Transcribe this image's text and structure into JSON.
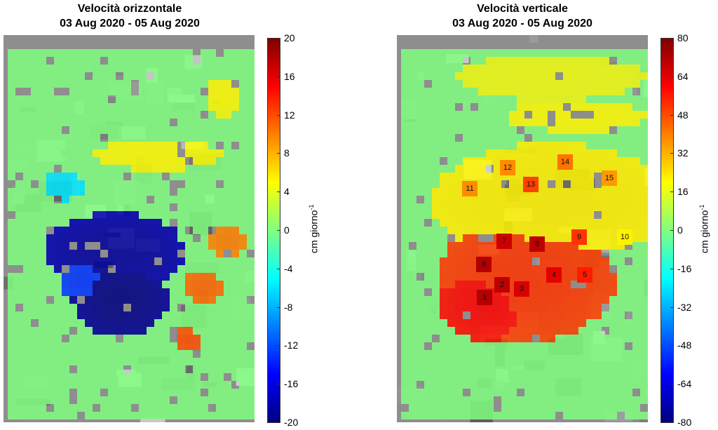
{
  "chart_data": [
    {
      "type": "heatmap",
      "title_line1": "Velocità orizzontale",
      "title_line2": "03 Aug 2020 - 05 Aug 2020",
      "colorbar_label": "cm giorno",
      "colorbar_exponent": "-1",
      "zlim": [
        -20,
        20
      ],
      "ticks": [
        "20",
        "16",
        "12",
        "8",
        "4",
        "0",
        "-4",
        "-8",
        "-12",
        "-16",
        "-20"
      ],
      "tick_values": [
        20,
        16,
        12,
        8,
        4,
        0,
        -4,
        -8,
        -12,
        -16,
        -20
      ],
      "colormap": "jet",
      "background_value": 0,
      "regions": [
        {
          "cx": 0.43,
          "cy": 0.55,
          "rx": 0.28,
          "ry": 0.1,
          "value": -19
        },
        {
          "cx": 0.45,
          "cy": 0.67,
          "rx": 0.19,
          "ry": 0.1,
          "value": -20
        },
        {
          "cx": 0.3,
          "cy": 0.62,
          "rx": 0.09,
          "ry": 0.06,
          "value": -13
        },
        {
          "cx": 0.22,
          "cy": 0.38,
          "rx": 0.08,
          "ry": 0.04,
          "value": -6
        },
        {
          "cx": 0.88,
          "cy": 0.52,
          "rx": 0.07,
          "ry": 0.04,
          "value": 10
        },
        {
          "cx": 0.78,
          "cy": 0.64,
          "rx": 0.08,
          "ry": 0.04,
          "value": 11
        },
        {
          "cx": 0.72,
          "cy": 0.78,
          "rx": 0.06,
          "ry": 0.03,
          "value": 12
        },
        {
          "cx": 0.6,
          "cy": 0.3,
          "rx": 0.25,
          "ry": 0.04,
          "value": 5
        },
        {
          "cx": 0.86,
          "cy": 0.15,
          "rx": 0.07,
          "ry": 0.05,
          "value": 5
        }
      ]
    },
    {
      "type": "heatmap",
      "title_line1": "Velocità verticale",
      "title_line2": "03 Aug 2020 - 05 Aug 2020",
      "colorbar_label": "cm giorno",
      "colorbar_exponent": "-1",
      "zlim": [
        -80,
        80
      ],
      "ticks": [
        "80",
        "64",
        "48",
        "32",
        "16",
        "0",
        "-16",
        "-32",
        "-48",
        "-64",
        "-80"
      ],
      "tick_values": [
        80,
        64,
        48,
        32,
        16,
        0,
        -16,
        -32,
        -48,
        -64,
        -80
      ],
      "colormap": "jet",
      "background_value": 0,
      "regions": [
        {
          "cx": 0.6,
          "cy": 0.42,
          "rx": 0.48,
          "ry": 0.15,
          "value": 22
        },
        {
          "cx": 0.6,
          "cy": 0.1,
          "rx": 0.38,
          "ry": 0.06,
          "value": 18
        },
        {
          "cx": 0.7,
          "cy": 0.2,
          "rx": 0.28,
          "ry": 0.04,
          "value": 20
        },
        {
          "cx": 0.5,
          "cy": 0.62,
          "rx": 0.36,
          "ry": 0.16,
          "value": 52
        },
        {
          "cx": 0.35,
          "cy": 0.68,
          "rx": 0.2,
          "ry": 0.1,
          "value": 60
        }
      ],
      "markers": [
        {
          "label": "1",
          "value": 72
        },
        {
          "label": "2",
          "value": 70
        },
        {
          "label": "3",
          "value": 66
        },
        {
          "label": "4",
          "value": 64
        },
        {
          "label": "5",
          "value": 56
        },
        {
          "label": "6",
          "value": 72
        },
        {
          "label": "7",
          "value": 68
        },
        {
          "label": "8",
          "value": 70
        },
        {
          "label": "9",
          "value": 52
        },
        {
          "label": "10",
          "value": 22
        },
        {
          "label": "11",
          "value": 38
        },
        {
          "label": "12",
          "value": 38
        },
        {
          "label": "13",
          "value": 50
        },
        {
          "label": "14",
          "value": 42
        },
        {
          "label": "15",
          "value": 36
        }
      ]
    }
  ]
}
